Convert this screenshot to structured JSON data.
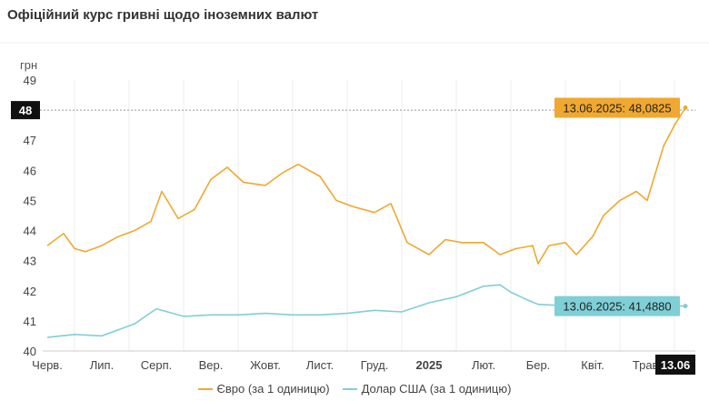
{
  "chart_data": {
    "type": "line",
    "title": "Офіційний курс гривні щодо іноземних валют",
    "ylabel": "грн",
    "ylim": [
      40,
      49
    ],
    "yticks": [
      40,
      41,
      42,
      43,
      44,
      45,
      46,
      47,
      48,
      49
    ],
    "highlight_tick": "48",
    "x_tick_labels": [
      "Черв.",
      "Лип.",
      "Серп.",
      "Вер.",
      "Жовт.",
      "Лист.",
      "Груд.",
      "2025",
      "Лют.",
      "Бер.",
      "Квіт.",
      "Трав."
    ],
    "x_end_label": "13.06",
    "grid": "vertical",
    "legend_position": "bottom",
    "series": [
      {
        "name": "Євро (за 1 одиницю)",
        "color": "#f0a830",
        "end_label": "13.06.2025: 48,0825",
        "x": [
          0,
          0.3,
          0.5,
          0.7,
          1,
          1.3,
          1.6,
          1.9,
          2.1,
          2.4,
          2.7,
          3,
          3.3,
          3.6,
          4,
          4.3,
          4.6,
          5,
          5.3,
          5.6,
          6,
          6.3,
          6.6,
          7,
          7.3,
          7.6,
          8,
          8.3,
          8.6,
          8.9,
          9,
          9.2,
          9.5,
          9.7,
          10,
          10.2,
          10.5,
          10.8,
          11,
          11.3,
          11.5,
          11.7
        ],
        "y": [
          43.5,
          43.9,
          43.4,
          43.3,
          43.5,
          43.8,
          44.0,
          44.3,
          45.3,
          44.4,
          44.7,
          45.7,
          46.1,
          45.6,
          45.5,
          45.9,
          46.2,
          45.8,
          45.0,
          44.8,
          44.6,
          44.9,
          43.6,
          43.2,
          43.7,
          43.6,
          43.6,
          43.2,
          43.4,
          43.5,
          42.9,
          43.5,
          43.6,
          43.2,
          43.8,
          44.5,
          45.0,
          45.3,
          45.0,
          46.8,
          47.5,
          48.08
        ]
      },
      {
        "name": "Долар США (за 1 одиницю)",
        "color": "#7fcfd6",
        "end_label": "13.06.2025: 41,4880",
        "x": [
          0,
          0.5,
          1,
          1.3,
          1.6,
          2,
          2.5,
          3,
          3.5,
          4,
          4.5,
          5,
          5.5,
          6,
          6.5,
          7,
          7.5,
          8,
          8.3,
          8.5,
          8.8,
          9,
          9.5,
          10,
          10.5,
          11,
          11.5,
          11.7
        ],
        "y": [
          40.45,
          40.55,
          40.5,
          40.7,
          40.9,
          41.4,
          41.15,
          41.2,
          41.2,
          41.25,
          41.2,
          41.2,
          41.25,
          41.35,
          41.3,
          41.6,
          41.8,
          42.15,
          42.2,
          41.95,
          41.7,
          41.55,
          41.5,
          41.5,
          41.55,
          41.5,
          41.5,
          41.49
        ]
      }
    ]
  }
}
